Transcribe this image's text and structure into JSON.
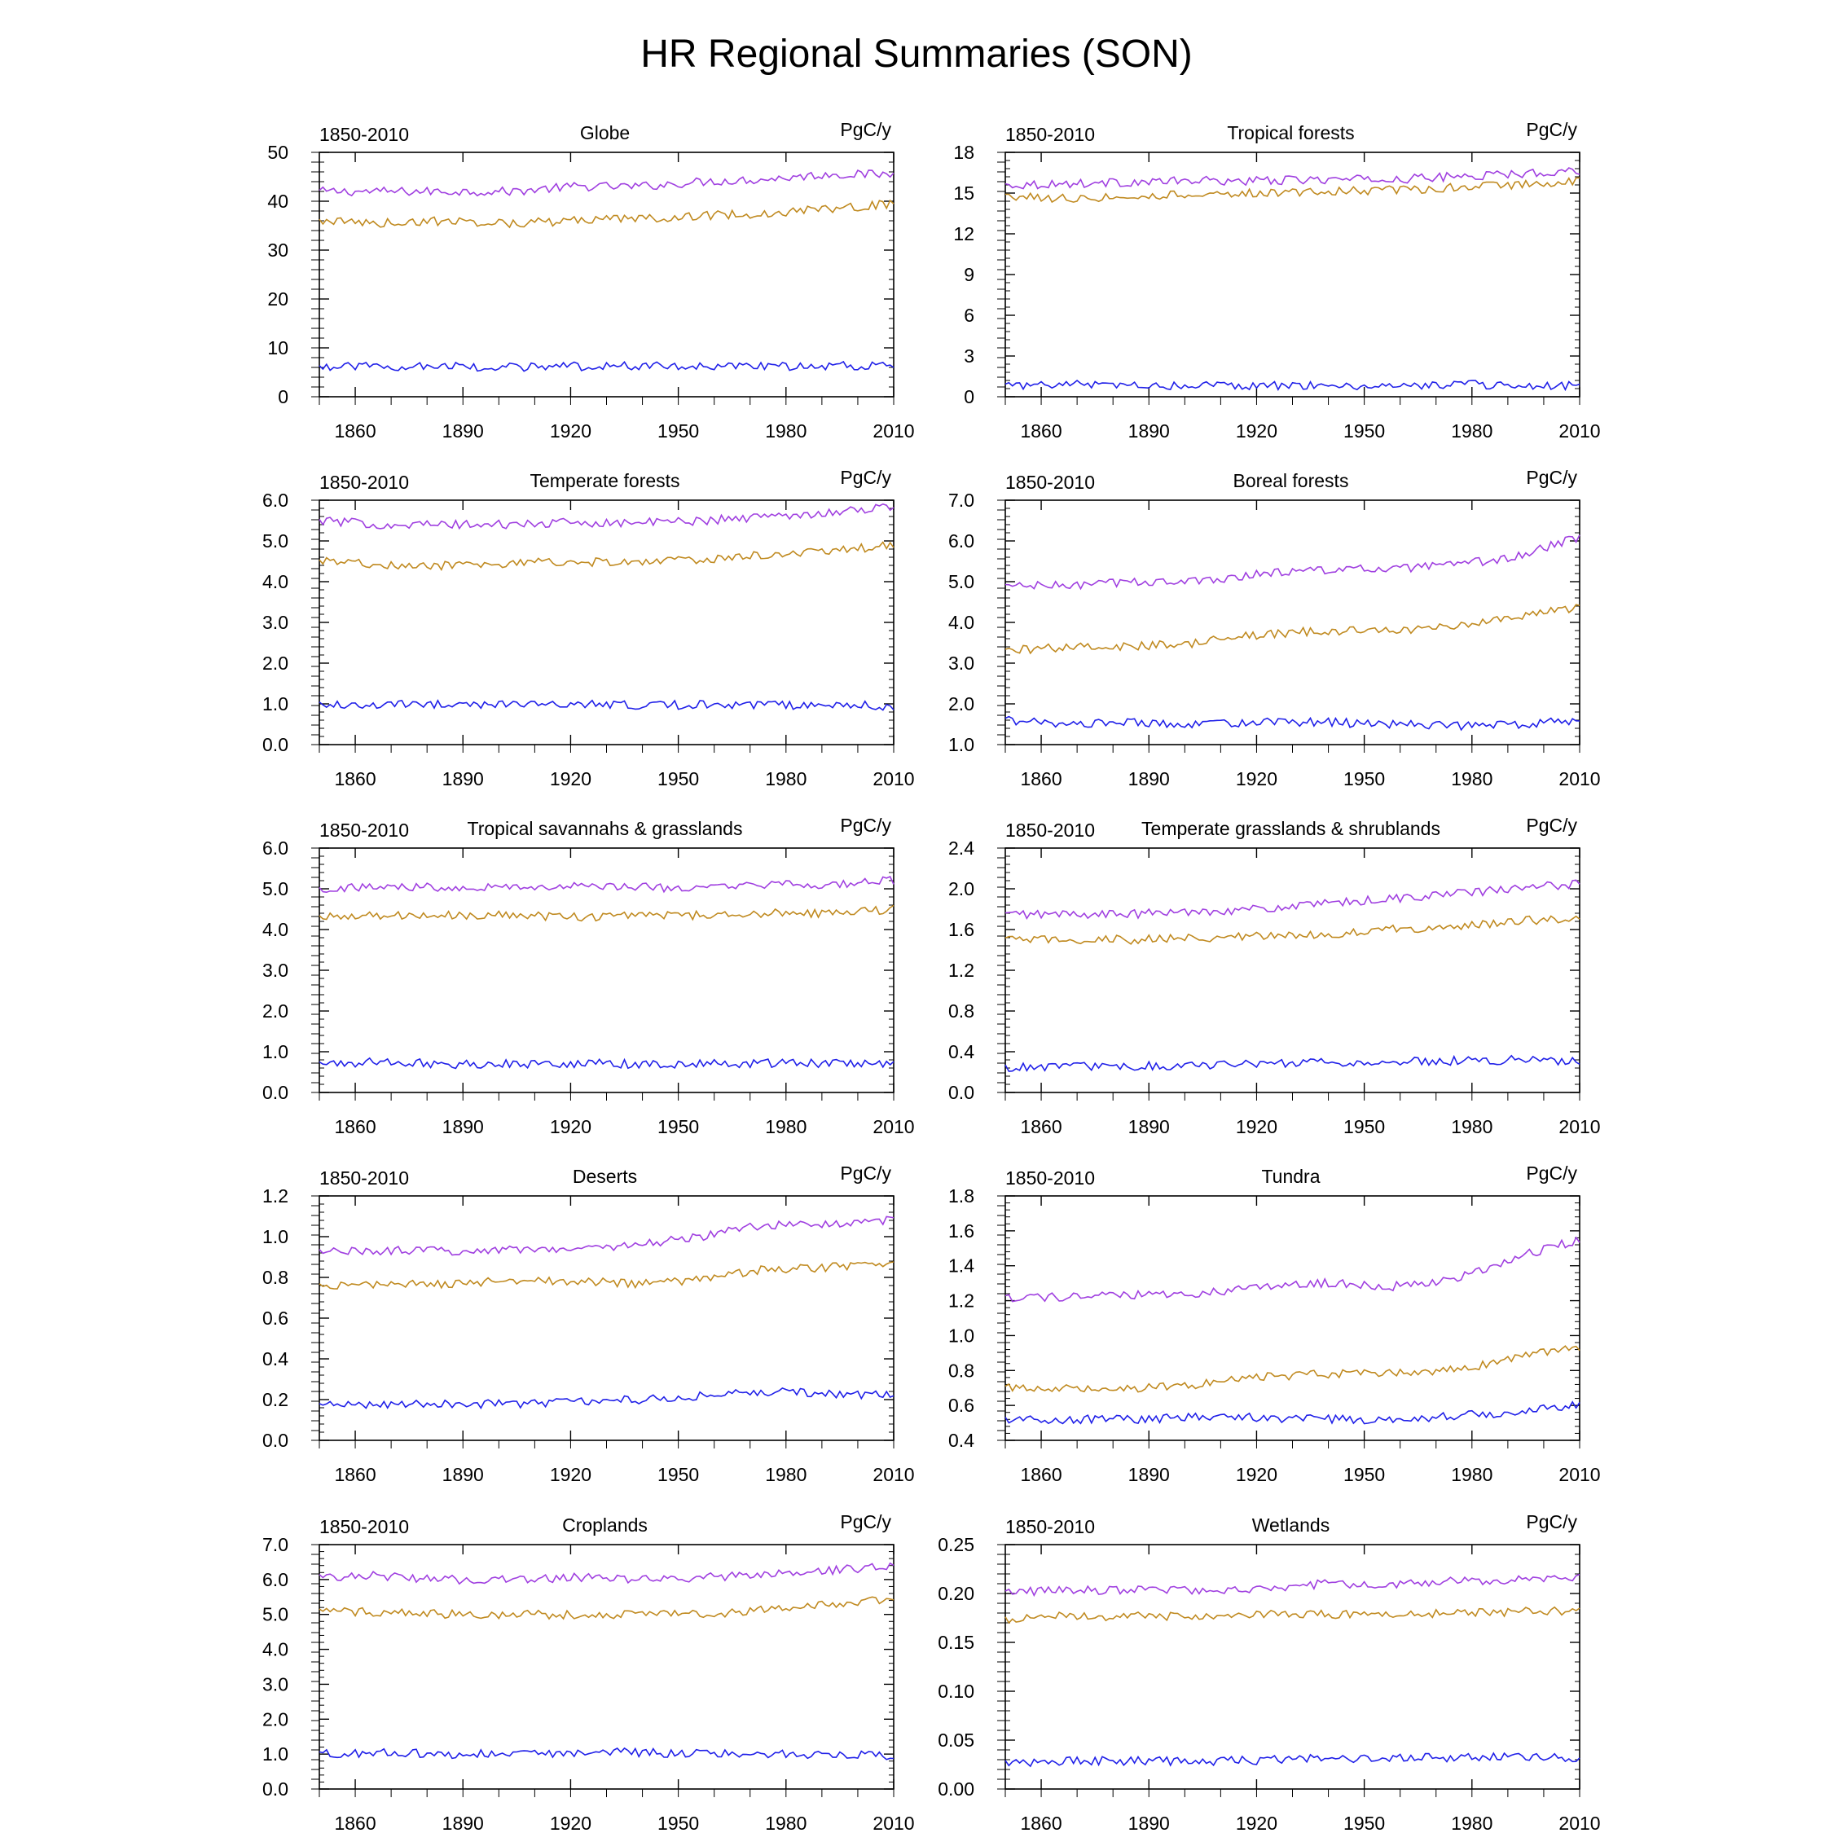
{
  "title": "HR Regional Summaries (SON)",
  "x_ticks": [
    1860,
    1890,
    1920,
    1950,
    1980,
    2010
  ],
  "colors": {
    "series_top": "#a040e0",
    "series_mid": "#c08a20",
    "series_low": "#2020e8"
  },
  "chart_data": [
    {
      "type": "line",
      "title": "Globe",
      "period": "1850-2010",
      "units": "PgC/y",
      "xlim": [
        1850,
        2010
      ],
      "ylim": [
        0,
        50
      ],
      "yticks": [
        "0",
        "10",
        "20",
        "30",
        "40",
        "50"
      ],
      "series": [
        {
          "color_key": "series_top",
          "values": [
            42,
            42,
            42,
            42,
            43,
            43,
            44,
            44.5,
            45.5,
            45.5
          ]
        },
        {
          "color_key": "series_mid",
          "values": [
            36,
            35.5,
            36,
            35.5,
            36,
            36.5,
            37,
            37.5,
            38.5,
            39.5
          ]
        },
        {
          "color_key": "series_low",
          "values": [
            6,
            6.2,
            6.3,
            6,
            6.2,
            6.3,
            6,
            6.2,
            6.4,
            6.3
          ]
        }
      ]
    },
    {
      "type": "line",
      "title": "Tropical forests",
      "period": "1850-2010",
      "units": "PgC/y",
      "xlim": [
        1850,
        2010
      ],
      "ylim": [
        0,
        18
      ],
      "yticks": [
        "0",
        "3",
        "6",
        "9",
        "12",
        "15",
        "18"
      ],
      "series": [
        {
          "color_key": "series_top",
          "values": [
            15.6,
            15.7,
            15.8,
            15.9,
            15.9,
            16,
            16,
            16.2,
            16.4,
            16.7
          ]
        },
        {
          "color_key": "series_mid",
          "values": [
            14.8,
            14.6,
            14.8,
            14.9,
            15,
            15.1,
            15.2,
            15.4,
            15.6,
            15.9
          ]
        },
        {
          "color_key": "series_low",
          "values": [
            0.8,
            0.9,
            0.9,
            0.8,
            0.8,
            0.8,
            0.8,
            0.9,
            0.9,
            0.8
          ]
        }
      ]
    },
    {
      "type": "line",
      "title": "Temperate forests",
      "period": "1850-2010",
      "units": "PgC/y",
      "xlim": [
        1850,
        2010
      ],
      "ylim": [
        0,
        6
      ],
      "yticks": [
        "0.0",
        "1.0",
        "2.0",
        "3.0",
        "4.0",
        "5.0",
        "6.0"
      ],
      "series": [
        {
          "color_key": "series_top",
          "values": [
            5.5,
            5.4,
            5.4,
            5.4,
            5.45,
            5.45,
            5.5,
            5.6,
            5.7,
            5.85
          ]
        },
        {
          "color_key": "series_mid",
          "values": [
            4.5,
            4.4,
            4.4,
            4.45,
            4.5,
            4.45,
            4.55,
            4.65,
            4.75,
            4.9
          ]
        },
        {
          "color_key": "series_low",
          "values": [
            1,
            1,
            1,
            0.98,
            0.98,
            0.97,
            0.98,
            0.97,
            0.97,
            0.95
          ]
        }
      ]
    },
    {
      "type": "line",
      "title": "Boreal forests",
      "period": "1850-2010",
      "units": "PgC/y",
      "xlim": [
        1850,
        2010
      ],
      "ylim": [
        1,
        7
      ],
      "yticks": [
        "1.0",
        "2.0",
        "3.0",
        "4.0",
        "5.0",
        "6.0",
        "7.0"
      ],
      "series": [
        {
          "color_key": "series_top",
          "values": [
            4.9,
            4.9,
            5,
            5,
            5.2,
            5.3,
            5.3,
            5.4,
            5.6,
            6.1
          ]
        },
        {
          "color_key": "series_mid",
          "values": [
            3.3,
            3.4,
            3.4,
            3.5,
            3.7,
            3.8,
            3.8,
            3.9,
            4.1,
            4.4
          ]
        },
        {
          "color_key": "series_low",
          "values": [
            1.6,
            1.5,
            1.55,
            1.5,
            1.55,
            1.55,
            1.5,
            1.45,
            1.5,
            1.6
          ]
        }
      ]
    },
    {
      "type": "line",
      "title": "Tropical savannahs & grasslands",
      "period": "1850-2010",
      "units": "PgC/y",
      "xlim": [
        1850,
        2010
      ],
      "ylim": [
        0,
        6
      ],
      "yticks": [
        "0.0",
        "1.0",
        "2.0",
        "3.0",
        "4.0",
        "5.0",
        "6.0"
      ],
      "series": [
        {
          "color_key": "series_top",
          "values": [
            5,
            5.05,
            5.05,
            5.05,
            5.05,
            5.05,
            5,
            5.1,
            5.1,
            5.2
          ]
        },
        {
          "color_key": "series_mid",
          "values": [
            4.3,
            4.35,
            4.35,
            4.35,
            4.3,
            4.35,
            4.35,
            4.4,
            4.4,
            4.5
          ]
        },
        {
          "color_key": "series_low",
          "values": [
            0.7,
            0.75,
            0.7,
            0.7,
            0.72,
            0.7,
            0.7,
            0.72,
            0.72,
            0.7
          ]
        }
      ]
    },
    {
      "type": "line",
      "title": "Temperate grasslands & shrublands",
      "period": "1850-2010",
      "units": "PgC/y",
      "xlim": [
        1850,
        2010
      ],
      "ylim": [
        0,
        2.4
      ],
      "yticks": [
        "0.0",
        "0.4",
        "0.8",
        "1.2",
        "1.6",
        "2.0",
        "2.4"
      ],
      "series": [
        {
          "color_key": "series_top",
          "values": [
            1.75,
            1.75,
            1.75,
            1.78,
            1.8,
            1.85,
            1.9,
            1.95,
            2,
            2.05
          ]
        },
        {
          "color_key": "series_mid",
          "values": [
            1.5,
            1.5,
            1.5,
            1.52,
            1.53,
            1.55,
            1.6,
            1.63,
            1.68,
            1.72
          ]
        },
        {
          "color_key": "series_low",
          "values": [
            0.25,
            0.25,
            0.26,
            0.27,
            0.28,
            0.29,
            0.3,
            0.31,
            0.32,
            0.31
          ]
        }
      ]
    },
    {
      "type": "line",
      "title": "Deserts",
      "period": "1850-2010",
      "units": "PgC/y",
      "xlim": [
        1850,
        2010
      ],
      "ylim": [
        0,
        1.2
      ],
      "yticks": [
        "0.0",
        "0.2",
        "0.4",
        "0.6",
        "0.8",
        "1.0",
        "1.2"
      ],
      "series": [
        {
          "color_key": "series_top",
          "values": [
            0.93,
            0.93,
            0.93,
            0.94,
            0.94,
            0.96,
            1,
            1.06,
            1.06,
            1.08
          ]
        },
        {
          "color_key": "series_mid",
          "values": [
            0.76,
            0.76,
            0.77,
            0.78,
            0.78,
            0.77,
            0.79,
            0.84,
            0.85,
            0.87
          ]
        },
        {
          "color_key": "series_low",
          "values": [
            0.17,
            0.18,
            0.18,
            0.18,
            0.19,
            0.2,
            0.22,
            0.24,
            0.23,
            0.22
          ]
        }
      ]
    },
    {
      "type": "line",
      "title": "Tundra",
      "period": "1850-2010",
      "units": "PgC/y",
      "xlim": [
        1850,
        2010
      ],
      "ylim": [
        0.4,
        1.8
      ],
      "yticks": [
        "0.4",
        "0.6",
        "0.8",
        "1.0",
        "1.2",
        "1.4",
        "1.6",
        "1.8"
      ],
      "series": [
        {
          "color_key": "series_top",
          "values": [
            1.22,
            1.22,
            1.23,
            1.24,
            1.28,
            1.3,
            1.28,
            1.32,
            1.45,
            1.55
          ]
        },
        {
          "color_key": "series_mid",
          "values": [
            0.7,
            0.7,
            0.7,
            0.72,
            0.76,
            0.78,
            0.78,
            0.8,
            0.87,
            0.94
          ]
        },
        {
          "color_key": "series_low",
          "values": [
            0.52,
            0.52,
            0.52,
            0.53,
            0.53,
            0.52,
            0.52,
            0.54,
            0.56,
            0.6
          ]
        }
      ]
    },
    {
      "type": "line",
      "title": "Croplands",
      "period": "1850-2010",
      "units": "PgC/y",
      "xlim": [
        1850,
        2010
      ],
      "ylim": [
        0,
        7
      ],
      "yticks": [
        "0.0",
        "1.0",
        "2.0",
        "3.0",
        "4.0",
        "5.0",
        "6.0",
        "7.0"
      ],
      "series": [
        {
          "color_key": "series_top",
          "values": [
            6.1,
            6.1,
            6,
            6,
            6.05,
            6,
            6.05,
            6.15,
            6.25,
            6.4
          ]
        },
        {
          "color_key": "series_mid",
          "values": [
            5.1,
            5.05,
            5,
            5,
            5,
            5,
            5,
            5.15,
            5.3,
            5.45
          ]
        },
        {
          "color_key": "series_low",
          "values": [
            1,
            1.05,
            1,
            1,
            1.05,
            1.05,
            1,
            1,
            1,
            0.95
          ]
        }
      ]
    },
    {
      "type": "line",
      "title": "Wetlands",
      "period": "1850-2010",
      "units": "PgC/y",
      "xlim": [
        1850,
        2010
      ],
      "ylim": [
        0,
        0.28
      ],
      "yticks": [
        "0.00",
        "0.05",
        "0.10",
        "0.15",
        "0.20",
        "0.25"
      ],
      "series": [
        {
          "color_key": "series_top",
          "values": [
            0.225,
            0.228,
            0.228,
            0.228,
            0.23,
            0.235,
            0.235,
            0.238,
            0.24,
            0.242
          ]
        },
        {
          "color_key": "series_mid",
          "values": [
            0.195,
            0.198,
            0.198,
            0.198,
            0.2,
            0.2,
            0.2,
            0.202,
            0.203,
            0.205
          ]
        },
        {
          "color_key": "series_low",
          "values": [
            0.03,
            0.032,
            0.032,
            0.032,
            0.033,
            0.035,
            0.036,
            0.036,
            0.036,
            0.035
          ]
        }
      ]
    }
  ]
}
